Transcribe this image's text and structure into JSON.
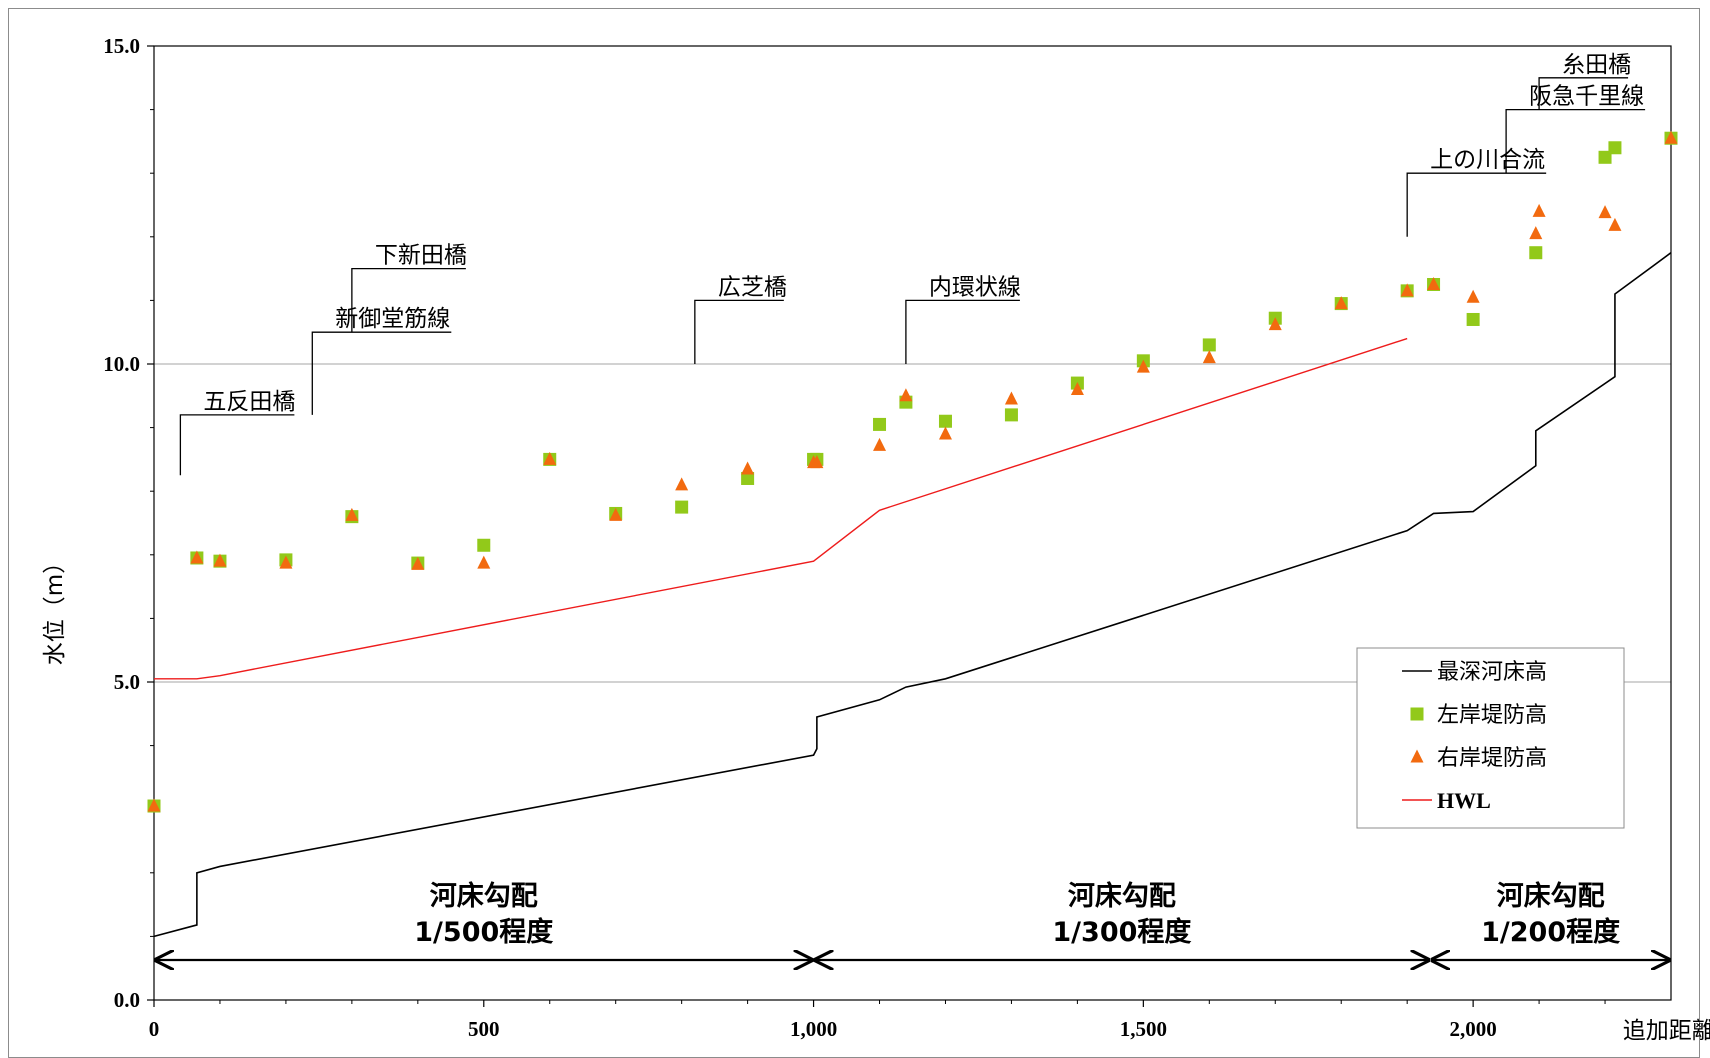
{
  "chart_data": {
    "type": "line",
    "title": "",
    "xlabel": "追加距離（m）",
    "ylabel": "水位（m）",
    "xlim": [
      0,
      2300
    ],
    "ylim": [
      0,
      15
    ],
    "x_ticks": [
      "0",
      "500",
      "1,000",
      "1,500",
      "2,000"
    ],
    "y_ticks": [
      "0.0",
      "5.0",
      "10.0",
      "15.0"
    ],
    "grid": "horizontal at 5.0 and 10.0",
    "legend_position": "right",
    "legend": [
      "最深河床高",
      "左岸堤防高",
      "右岸堤防高",
      "HWL"
    ],
    "colors": {
      "bed": "#000000",
      "left_bank": "#92c91a",
      "right_bank": "#f26a0f",
      "hwl": "#ee1c1c"
    },
    "series": [
      {
        "name": "最深河床高",
        "kind": "line",
        "points": [
          [
            0,
            1.0
          ],
          [
            65,
            1.18
          ],
          [
            65,
            2.0
          ],
          [
            100,
            2.1
          ],
          [
            1000,
            3.85
          ],
          [
            1005,
            3.95
          ],
          [
            1005,
            4.45
          ],
          [
            1100,
            4.72
          ],
          [
            1140,
            4.92
          ],
          [
            1200,
            5.05
          ],
          [
            1900,
            7.38
          ],
          [
            1940,
            7.65
          ],
          [
            2000,
            7.68
          ],
          [
            2095,
            8.4
          ],
          [
            2095,
            8.95
          ],
          [
            2215,
            9.8
          ],
          [
            2215,
            11.1
          ],
          [
            2300,
            11.75
          ]
        ]
      },
      {
        "name": "左岸堤防高",
        "kind": "square",
        "points": [
          [
            0,
            3.05
          ],
          [
            65,
            6.95
          ],
          [
            100,
            6.9
          ],
          [
            200,
            6.92
          ],
          [
            300,
            7.6
          ],
          [
            400,
            6.87
          ],
          [
            500,
            7.15
          ],
          [
            600,
            8.5
          ],
          [
            700,
            7.65
          ],
          [
            800,
            7.75
          ],
          [
            900,
            8.2
          ],
          [
            1000,
            8.5
          ],
          [
            1005,
            8.5
          ],
          [
            1100,
            9.05
          ],
          [
            1140,
            9.4
          ],
          [
            1200,
            9.1
          ],
          [
            1300,
            9.2
          ],
          [
            1400,
            9.7
          ],
          [
            1500,
            10.05
          ],
          [
            1600,
            10.3
          ],
          [
            1700,
            10.72
          ],
          [
            1800,
            10.95
          ],
          [
            1900,
            11.15
          ],
          [
            1940,
            11.25
          ],
          [
            2000,
            10.7
          ],
          [
            2095,
            11.75
          ],
          [
            2200,
            13.25
          ],
          [
            2215,
            13.4
          ],
          [
            2300,
            13.55
          ]
        ]
      },
      {
        "name": "右岸堤防高",
        "kind": "triangle",
        "points": [
          [
            0,
            3.05
          ],
          [
            65,
            6.95
          ],
          [
            100,
            6.9
          ],
          [
            200,
            6.87
          ],
          [
            300,
            7.62
          ],
          [
            400,
            6.85
          ],
          [
            500,
            6.87
          ],
          [
            600,
            8.5
          ],
          [
            700,
            7.62
          ],
          [
            800,
            8.1
          ],
          [
            900,
            8.35
          ],
          [
            1000,
            8.45
          ],
          [
            1005,
            8.45
          ],
          [
            1100,
            8.72
          ],
          [
            1140,
            9.5
          ],
          [
            1200,
            8.9
          ],
          [
            1300,
            9.45
          ],
          [
            1400,
            9.6
          ],
          [
            1500,
            9.95
          ],
          [
            1600,
            10.1
          ],
          [
            1700,
            10.62
          ],
          [
            1800,
            10.95
          ],
          [
            1900,
            11.15
          ],
          [
            1940,
            11.25
          ],
          [
            2000,
            11.05
          ],
          [
            2095,
            12.05
          ],
          [
            2100,
            12.4
          ],
          [
            2200,
            12.38
          ],
          [
            2215,
            12.18
          ],
          [
            2300,
            13.55
          ]
        ]
      },
      {
        "name": "HWL",
        "kind": "line",
        "points": [
          [
            0,
            5.05
          ],
          [
            65,
            5.05
          ],
          [
            100,
            5.1
          ],
          [
            1000,
            6.9
          ],
          [
            1100,
            7.7
          ],
          [
            1900,
            10.4
          ]
        ]
      }
    ],
    "annotations": [
      {
        "label": "五反田橋",
        "x": 40,
        "y_base": 8.25,
        "y_top": 9.2
      },
      {
        "label": "新御堂筋線",
        "x": 240,
        "y_base": 9.2,
        "y_top": 10.5
      },
      {
        "label": "下新田橋",
        "x": 300,
        "y_base": 10.5,
        "y_top": 11.5
      },
      {
        "label": "広芝橋",
        "x": 820,
        "y_base": 10.0,
        "y_top": 11.0
      },
      {
        "label": "内環状線",
        "x": 1140,
        "y_base": 10.0,
        "y_top": 11.0
      },
      {
        "label": "上の川合流",
        "x": 1900,
        "y_base": 12.0,
        "y_top": 13.0
      },
      {
        "label": "阪急千里線",
        "x": 2050,
        "y_base": 13.0,
        "y_top": 14.0
      },
      {
        "label": "糸田橋",
        "x": 2100,
        "y_base": 14.0,
        "y_top": 14.5
      }
    ],
    "gradient_sections": [
      {
        "label": "河床勾配",
        "sublabel": "1/500程度",
        "x_start": 0,
        "x_end": 1000
      },
      {
        "label": "河床勾配",
        "sublabel": "1/300程度",
        "x_start": 1000,
        "x_end": 1935
      },
      {
        "label": "河床勾配",
        "sublabel": "1/200程度",
        "x_start": 1935,
        "x_end": 2300
      }
    ]
  }
}
